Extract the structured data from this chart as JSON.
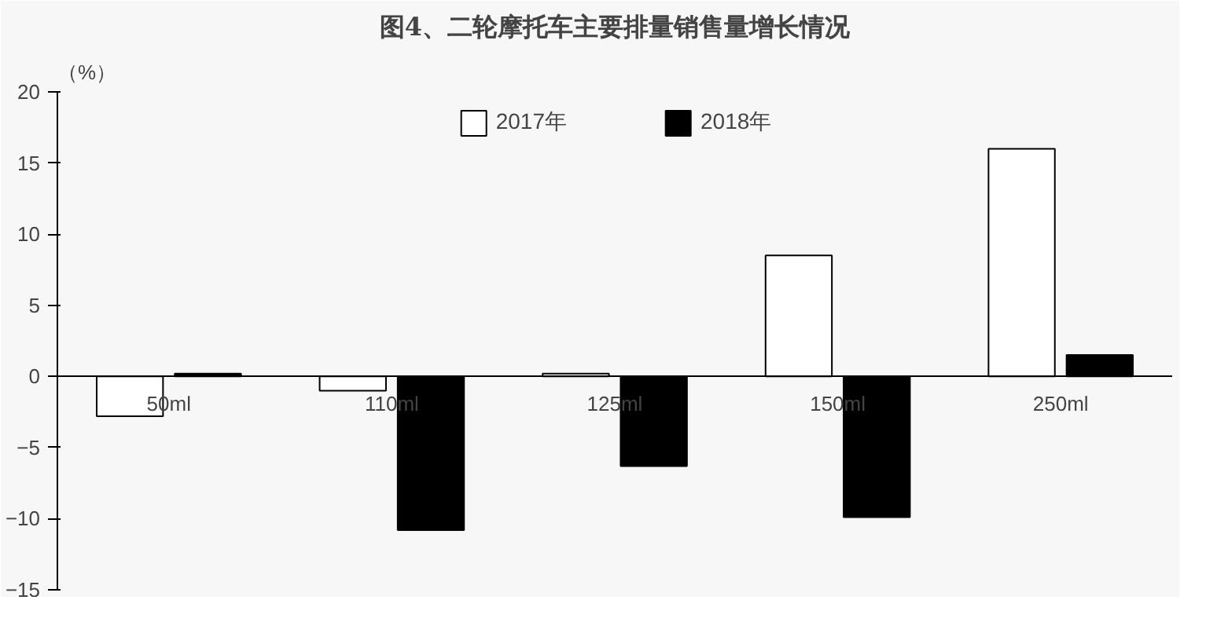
{
  "chart_data": {
    "type": "bar",
    "title": "图4、二轮摩托车主要排量销售量增长情况",
    "ylabel": "（%）",
    "categories": [
      "50ml",
      "110ml",
      "125ml",
      "150ml",
      "250ml"
    ],
    "series": [
      {
        "name": "2017年",
        "color": "#ffffff",
        "values": [
          -2.8,
          -1.0,
          0.2,
          8.5,
          16.0
        ]
      },
      {
        "name": "2018年",
        "color": "#000000",
        "values": [
          0.2,
          -10.8,
          -6.3,
          -9.9,
          1.5
        ]
      }
    ],
    "ylim": [
      -15,
      20
    ],
    "yticks": [
      -15,
      -10,
      -5,
      0,
      5,
      10,
      15,
      20
    ],
    "grid": false,
    "legend": "top"
  }
}
